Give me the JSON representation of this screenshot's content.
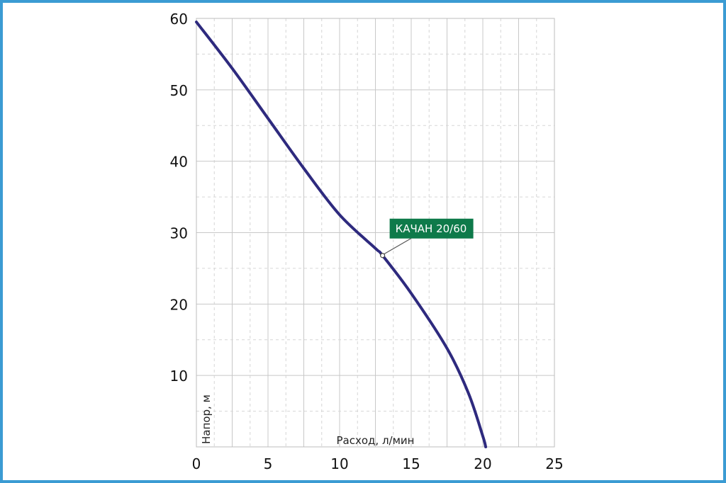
{
  "chart_data": {
    "type": "line",
    "xlabel": "Расход, л/мин",
    "ylabel": "Напор, м",
    "xlim": [
      0,
      25
    ],
    "ylim": [
      0,
      60
    ],
    "x_ticks": [
      "0",
      "5",
      "10",
      "15",
      "20",
      "25"
    ],
    "y_ticks": [
      "10",
      "20",
      "30",
      "40",
      "50",
      "60"
    ],
    "grid": true,
    "series": [
      {
        "name": "КАЧАН 20/60",
        "color": "#2e2a7e",
        "x": [
          0,
          2.5,
          5,
          7.5,
          10,
          12.5,
          13,
          15,
          17.5,
          19,
          20,
          20.2
        ],
        "y": [
          59.5,
          53,
          46,
          39,
          32.5,
          27.8,
          26.8,
          21.5,
          13.8,
          7.5,
          1.5,
          0
        ]
      }
    ],
    "annotation": {
      "text": "КАЧАН 20/60",
      "x": 13,
      "y": 26.8,
      "color": "#0e7a4a"
    }
  }
}
